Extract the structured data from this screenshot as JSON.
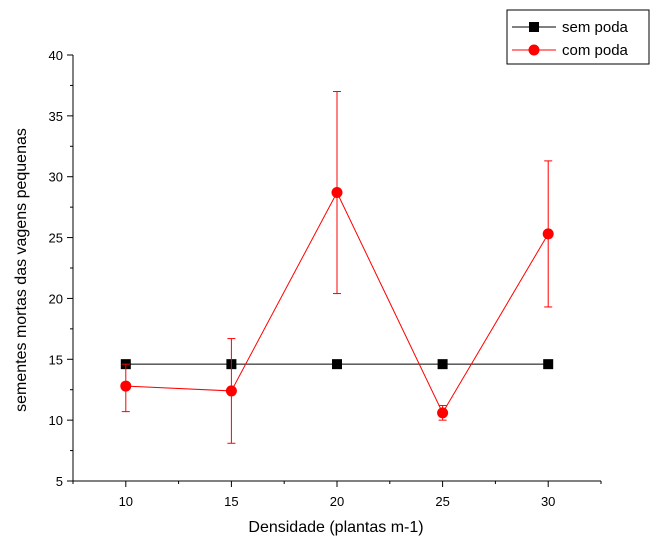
{
  "chart_data": {
    "type": "line",
    "title": "",
    "xlabel": "Densidade (plantas m-1)",
    "ylabel": "sementes mortas das vagens pequenas",
    "x": [
      10,
      15,
      20,
      25,
      30
    ],
    "xlim": [
      7.5,
      32.5
    ],
    "ylim": [
      5,
      40
    ],
    "x_ticks": [
      10,
      15,
      20,
      25,
      30
    ],
    "y_ticks": [
      5,
      10,
      15,
      20,
      25,
      30,
      35,
      40
    ],
    "grid": false,
    "legend_position": "top-right",
    "series": [
      {
        "name": "sem poda",
        "color": "#000000",
        "marker": "square",
        "values": [
          14.6,
          14.6,
          14.6,
          14.6,
          14.6
        ],
        "error": null
      },
      {
        "name": "com poda",
        "color": "#ff0000",
        "marker": "circle",
        "values": [
          12.8,
          12.4,
          28.7,
          10.6,
          25.3
        ],
        "error_low": [
          10.7,
          8.1,
          20.4,
          10.0,
          19.3
        ],
        "error_high": [
          14.6,
          16.7,
          37.0,
          11.2,
          31.3
        ]
      }
    ]
  }
}
